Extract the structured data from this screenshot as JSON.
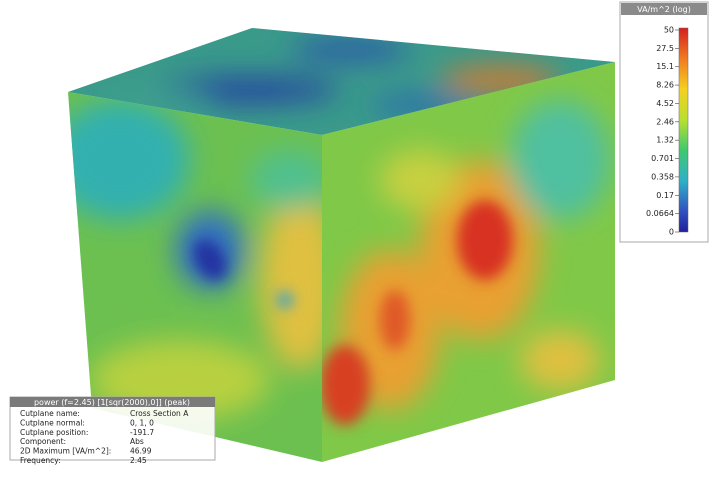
{
  "colorbar": {
    "title": "VA/m^2 (log)",
    "ticks": [
      "50",
      "27.5",
      "15.1",
      "8.26",
      "4.52",
      "2.46",
      "1.32",
      "0.701",
      "0.358",
      "0.17",
      "0.0664",
      "0"
    ]
  },
  "info": {
    "title": "power (f=2.45) [1[sqr(2000),0]] (peak)",
    "rows": [
      [
        "Cutplane name:",
        "Cross Section A"
      ],
      [
        "Cutplane normal:",
        "0, 1, 0"
      ],
      [
        "Cutplane position:",
        "-191.7"
      ],
      [
        "Component:",
        "Abs"
      ],
      [
        "2D Maximum [VA/m^2]:",
        "46.99"
      ],
      [
        "Frequency:",
        "2.45"
      ]
    ]
  }
}
